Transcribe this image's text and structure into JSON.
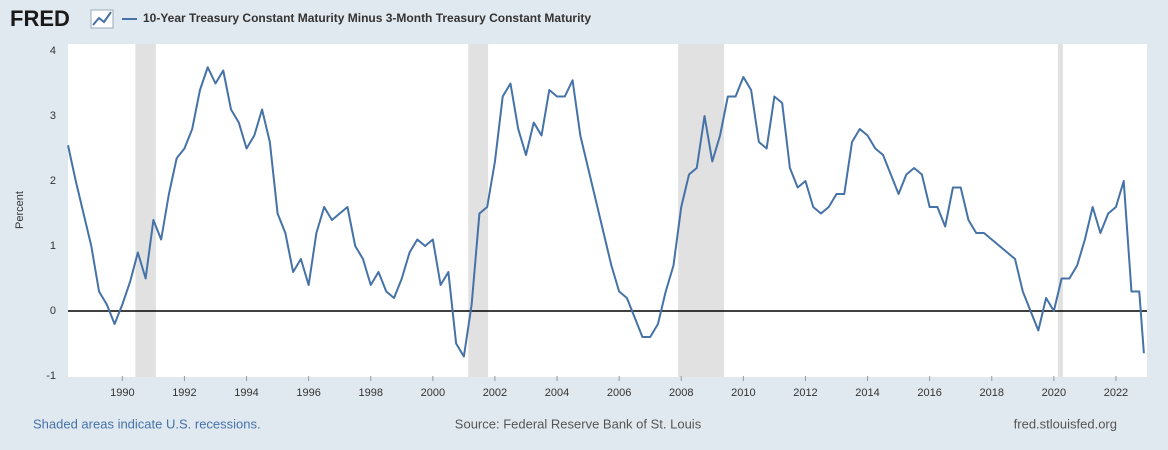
{
  "chart_data": {
    "type": "line",
    "logo": "FRED",
    "y_label": "Percent",
    "footnote": "Shaded areas indicate U.S. recessions.",
    "source": "Source: Federal Reserve Bank of St. Louis",
    "site": "fred.stlouisfed.org",
    "xlim": [
      1988.25,
      2023
    ],
    "ylim": [
      -1,
      4
    ],
    "xticks": [
      1990,
      1992,
      1994,
      1996,
      1998,
      2000,
      2002,
      2004,
      2006,
      2008,
      2010,
      2012,
      2014,
      2016,
      2018,
      2020,
      2022
    ],
    "yticks": [
      -1,
      0,
      1,
      2,
      3,
      4
    ],
    "grid": false,
    "recession_color": "#e1e1e1",
    "recessions": [
      {
        "start": 1990.42,
        "end": 1991.08
      },
      {
        "start": 2001.14,
        "end": 2001.78
      },
      {
        "start": 2007.9,
        "end": 2009.38
      },
      {
        "start": 2020.13,
        "end": 2020.29
      }
    ],
    "x": [
      1988.25,
      1988.5,
      1988.75,
      1989,
      1989.25,
      1989.5,
      1989.75,
      1990,
      1990.25,
      1990.5,
      1990.75,
      1991,
      1991.25,
      1991.5,
      1991.75,
      1992,
      1992.25,
      1992.5,
      1992.75,
      1993,
      1993.25,
      1993.5,
      1993.75,
      1994,
      1994.25,
      1994.5,
      1994.75,
      1995,
      1995.25,
      1995.5,
      1995.75,
      1996,
      1996.25,
      1996.5,
      1996.75,
      1997,
      1997.25,
      1997.5,
      1997.75,
      1998,
      1998.25,
      1998.5,
      1998.75,
      1999,
      1999.25,
      1999.5,
      1999.75,
      2000,
      2000.25,
      2000.5,
      2000.75,
      2001,
      2001.25,
      2001.5,
      2001.75,
      2002,
      2002.25,
      2002.5,
      2002.75,
      2003,
      2003.25,
      2003.5,
      2003.75,
      2004,
      2004.25,
      2004.5,
      2004.75,
      2005,
      2005.25,
      2005.5,
      2005.75,
      2006,
      2006.25,
      2006.5,
      2006.75,
      2007,
      2007.25,
      2007.5,
      2007.75,
      2008,
      2008.25,
      2008.5,
      2008.75,
      2009,
      2009.25,
      2009.5,
      2009.75,
      2010,
      2010.25,
      2010.5,
      2010.75,
      2011,
      2011.25,
      2011.5,
      2011.75,
      2012,
      2012.25,
      2012.5,
      2012.75,
      2013,
      2013.25,
      2013.5,
      2013.75,
      2014,
      2014.25,
      2014.5,
      2014.75,
      2015,
      2015.25,
      2015.5,
      2015.75,
      2016,
      2016.25,
      2016.5,
      2016.75,
      2017,
      2017.25,
      2017.5,
      2017.75,
      2018,
      2018.25,
      2018.5,
      2018.75,
      2019,
      2019.25,
      2019.5,
      2019.75,
      2020,
      2020.25,
      2020.5,
      2020.75,
      2021,
      2021.25,
      2021.5,
      2021.75,
      2022,
      2022.25,
      2022.5,
      2022.75,
      2022.9
    ],
    "series": [
      {
        "name": "10-Year Treasury Constant Maturity Minus 3-Month Treasury Constant Maturity",
        "color": "#4572a7",
        "values": [
          2.55,
          2.0,
          1.5,
          1.0,
          0.3,
          0.1,
          -0.2,
          0.1,
          0.45,
          0.9,
          0.5,
          1.4,
          1.1,
          1.8,
          2.35,
          2.5,
          2.8,
          3.4,
          3.75,
          3.5,
          3.7,
          3.1,
          2.9,
          2.5,
          2.7,
          3.1,
          2.6,
          1.5,
          1.2,
          0.6,
          0.8,
          0.4,
          1.2,
          1.6,
          1.4,
          1.5,
          1.6,
          1.0,
          0.8,
          0.4,
          0.6,
          0.3,
          0.2,
          0.5,
          0.9,
          1.1,
          1.0,
          1.1,
          0.4,
          0.6,
          -0.5,
          -0.7,
          0.1,
          1.5,
          1.6,
          2.3,
          3.3,
          3.5,
          2.8,
          2.4,
          2.9,
          2.7,
          3.4,
          3.3,
          3.3,
          3.55,
          2.7,
          2.2,
          1.7,
          1.2,
          0.7,
          0.3,
          0.2,
          -0.1,
          -0.4,
          -0.4,
          -0.2,
          0.3,
          0.7,
          1.6,
          2.1,
          2.2,
          3.0,
          2.3,
          2.7,
          3.3,
          3.3,
          3.6,
          3.4,
          2.6,
          2.5,
          3.3,
          3.2,
          2.2,
          1.9,
          2.0,
          1.6,
          1.5,
          1.6,
          1.8,
          1.8,
          2.6,
          2.8,
          2.7,
          2.5,
          2.4,
          2.1,
          1.8,
          2.1,
          2.2,
          2.1,
          1.6,
          1.6,
          1.3,
          1.9,
          1.9,
          1.4,
          1.2,
          1.2,
          1.1,
          1.0,
          0.9,
          0.8,
          0.3,
          0.0,
          -0.3,
          0.2,
          0.0,
          0.5,
          0.5,
          0.7,
          1.1,
          1.6,
          1.2,
          1.5,
          1.6,
          2.0,
          0.3,
          0.3,
          -0.65
        ]
      }
    ]
  }
}
